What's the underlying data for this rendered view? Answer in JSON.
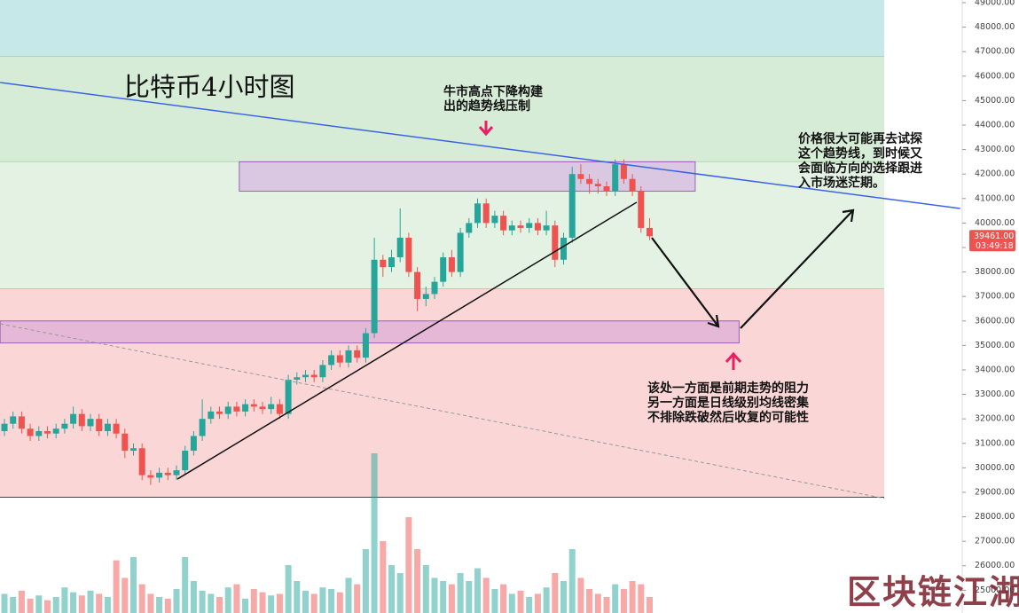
{
  "chart_data": {
    "type": "candlestick",
    "title": "比特币4小时图",
    "annotations": [
      [
        "牛市高点下降构建",
        "出的趋势线压制"
      ],
      [
        "价格很大可能再去试探",
        "这个趋势线，到时候又",
        "会面临方向的选择跟进",
        "入市场迷茫期。"
      ],
      [
        "该处一方面是前期走势的阻力",
        "另一方面是日线级别均线密集",
        "不排除跌破然后收复的可能性"
      ]
    ],
    "watermark": "区块链江湖",
    "up_color": "#26a69a",
    "down_color": "#ef5350",
    "ylim": [
      24070,
      49110
    ],
    "yticks": [
      {
        "value": 25000,
        "label": "25000.00"
      },
      {
        "value": 26000,
        "label": "26000.00"
      },
      {
        "value": 27000,
        "label": "27000.00"
      },
      {
        "value": 28000,
        "label": "28000.00"
      },
      {
        "value": 29000,
        "label": "29000.00"
      },
      {
        "value": 30000,
        "label": "30000.00"
      },
      {
        "value": 31000,
        "label": "31000.00"
      },
      {
        "value": 32000,
        "label": "32000.00"
      },
      {
        "value": 33000,
        "label": "33000.00"
      },
      {
        "value": 34000,
        "label": "34000.00"
      },
      {
        "value": 35000,
        "label": "35000.00"
      },
      {
        "value": 36000,
        "label": "36000.00"
      },
      {
        "value": 37000,
        "label": "37000.00"
      },
      {
        "value": 38000,
        "label": "38000.00"
      },
      {
        "value": 39000,
        "label": "39000.00"
      },
      {
        "value": 40000,
        "label": "40000.00"
      },
      {
        "value": 41000,
        "label": "41000.00"
      },
      {
        "value": 42000,
        "label": "42000.00"
      },
      {
        "value": 43000,
        "label": "43000.00"
      },
      {
        "value": 44000,
        "label": "44000.00"
      },
      {
        "value": 45000,
        "label": "45000.00"
      },
      {
        "value": 46000,
        "label": "46000.00"
      },
      {
        "value": 47000,
        "label": "47000.00"
      },
      {
        "value": 48000,
        "label": "48000.00"
      },
      {
        "value": 49000,
        "label": "49000.00"
      }
    ],
    "last_price": {
      "value": 39461,
      "label": "39461.00"
    },
    "countdown": "03:49:18",
    "zones": [
      {
        "from": 46800,
        "to": 49110,
        "color": "#c7e8e8"
      },
      {
        "from": 42500,
        "to": 46800,
        "color": "#d6ecd6"
      },
      {
        "from": 37300,
        "to": 42500,
        "color": "#e3f2e3"
      },
      {
        "from": 28800,
        "to": 37300,
        "color": "#fbd6d6"
      }
    ],
    "boxes": [
      {
        "x": [
          27.3,
          80.3
        ],
        "from": 41300,
        "to": 42500,
        "color": "#d8c3e2"
      },
      {
        "x": [
          -0.5,
          85.4
        ],
        "from": 35100,
        "to": 36000,
        "color": "#e2b5d8"
      }
    ],
    "lines": [
      {
        "points": [
          [
            -0.5,
            45740
          ],
          [
            111.1,
            40594
          ]
        ],
        "color": "#3b63e6",
        "dashed": false
      },
      {
        "points": [
          [
            20.1,
            29540
          ],
          [
            73.5,
            40848
          ]
        ],
        "color": "#111111",
        "dashed": false
      },
      {
        "points": [
          [
            -0.5,
            35884
          ],
          [
            102.3,
            28750
          ]
        ],
        "color": "#999999",
        "dashed": true
      }
    ],
    "ohlc": [
      [
        31500,
        32000,
        31300,
        31800
      ],
      [
        31800,
        32300,
        31600,
        32100
      ],
      [
        32100,
        32300,
        31400,
        31600
      ],
      [
        31600,
        31800,
        31100,
        31300
      ],
      [
        31300,
        31700,
        31100,
        31500
      ],
      [
        31500,
        31700,
        31200,
        31400
      ],
      [
        31400,
        31800,
        31200,
        31600
      ],
      [
        31600,
        32000,
        31400,
        31800
      ],
      [
        31800,
        32500,
        31600,
        32200
      ],
      [
        32200,
        32400,
        31500,
        31700
      ],
      [
        31700,
        32200,
        31500,
        32000
      ],
      [
        32000,
        32200,
        31300,
        31500
      ],
      [
        31500,
        32000,
        31300,
        31800
      ],
      [
        31800,
        32000,
        31200,
        31400
      ],
      [
        31400,
        31600,
        30400,
        30700
      ],
      [
        30700,
        31000,
        30500,
        30800
      ],
      [
        30800,
        31000,
        29500,
        29700
      ],
      [
        29700,
        29900,
        29300,
        29600
      ],
      [
        29600,
        30000,
        29400,
        29800
      ],
      [
        29800,
        30000,
        29500,
        29700
      ],
      [
        29700,
        30100,
        29500,
        29900
      ],
      [
        29900,
        30900,
        29700,
        30700
      ],
      [
        30700,
        31500,
        30500,
        31300
      ],
      [
        31300,
        32800,
        31100,
        32000
      ],
      [
        32000,
        32500,
        31800,
        32300
      ],
      [
        32300,
        32500,
        32000,
        32200
      ],
      [
        32200,
        32700,
        32000,
        32500
      ],
      [
        32500,
        32700,
        32100,
        32300
      ],
      [
        32300,
        32800,
        32100,
        32600
      ],
      [
        32600,
        32800,
        32300,
        32500
      ],
      [
        32500,
        32700,
        32200,
        32400
      ],
      [
        32400,
        32900,
        32200,
        32600
      ],
      [
        32600,
        32800,
        32000,
        32200
      ],
      [
        32200,
        33800,
        32000,
        33600
      ],
      [
        33600,
        33900,
        33400,
        33700
      ],
      [
        33700,
        34000,
        33500,
        33800
      ],
      [
        33800,
        34000,
        33500,
        33700
      ],
      [
        33700,
        34400,
        33500,
        34200
      ],
      [
        34200,
        34800,
        34000,
        34600
      ],
      [
        34600,
        34800,
        34100,
        34300
      ],
      [
        34300,
        35000,
        34100,
        34800
      ],
      [
        34800,
        35000,
        34300,
        34500
      ],
      [
        34500,
        35700,
        34300,
        35500
      ],
      [
        35500,
        39400,
        35300,
        38500
      ],
      [
        38500,
        38700,
        37800,
        38200
      ],
      [
        38200,
        38900,
        38000,
        38600
      ],
      [
        38600,
        40600,
        38400,
        39400
      ],
      [
        39400,
        39600,
        37800,
        38000
      ],
      [
        38000,
        38200,
        36400,
        36900
      ],
      [
        36900,
        37400,
        36600,
        37100
      ],
      [
        37100,
        37800,
        36900,
        37600
      ],
      [
        37600,
        38800,
        37400,
        38600
      ],
      [
        38600,
        38900,
        37800,
        38000
      ],
      [
        38000,
        39800,
        37800,
        39600
      ],
      [
        39600,
        40200,
        39400,
        40000
      ],
      [
        40000,
        41000,
        39800,
        40800
      ],
      [
        40800,
        41000,
        39800,
        40000
      ],
      [
        40000,
        40500,
        39800,
        40300
      ],
      [
        40300,
        40500,
        39500,
        39700
      ],
      [
        39700,
        40100,
        39500,
        39900
      ],
      [
        39900,
        40100,
        39600,
        39800
      ],
      [
        39800,
        40200,
        39600,
        40000
      ],
      [
        40000,
        40200,
        39500,
        39700
      ],
      [
        39700,
        40500,
        39500,
        39900
      ],
      [
        39900,
        40100,
        38200,
        38500
      ],
      [
        38500,
        39600,
        38300,
        39400
      ],
      [
        39400,
        42300,
        39200,
        42000
      ],
      [
        42000,
        42400,
        41600,
        41800
      ],
      [
        41800,
        42000,
        41200,
        41600
      ],
      [
        41600,
        41800,
        41200,
        41500
      ],
      [
        41500,
        41700,
        41100,
        41300
      ],
      [
        41300,
        42600,
        41100,
        42400
      ],
      [
        42400,
        42600,
        41600,
        41800
      ],
      [
        41800,
        42000,
        41100,
        41300
      ],
      [
        41300,
        41500,
        39600,
        39800
      ],
      [
        39800,
        40200,
        39300,
        39461
      ]
    ],
    "volume": [
      12,
      10,
      14,
      9,
      11,
      8,
      10,
      16,
      13,
      11,
      14,
      12,
      10,
      33,
      22,
      35,
      18,
      12,
      10,
      9,
      15,
      35,
      20,
      14,
      12,
      10,
      16,
      18,
      9,
      15,
      13,
      11,
      12,
      30,
      20,
      14,
      12,
      16,
      15,
      13,
      22,
      18,
      40,
      100,
      45,
      30,
      25,
      60,
      40,
      30,
      22,
      20,
      18,
      25,
      20,
      28,
      22,
      15,
      18,
      12,
      14,
      10,
      12,
      16,
      25,
      20,
      40,
      22,
      15,
      12,
      10,
      18,
      15,
      20,
      18,
      10
    ]
  }
}
